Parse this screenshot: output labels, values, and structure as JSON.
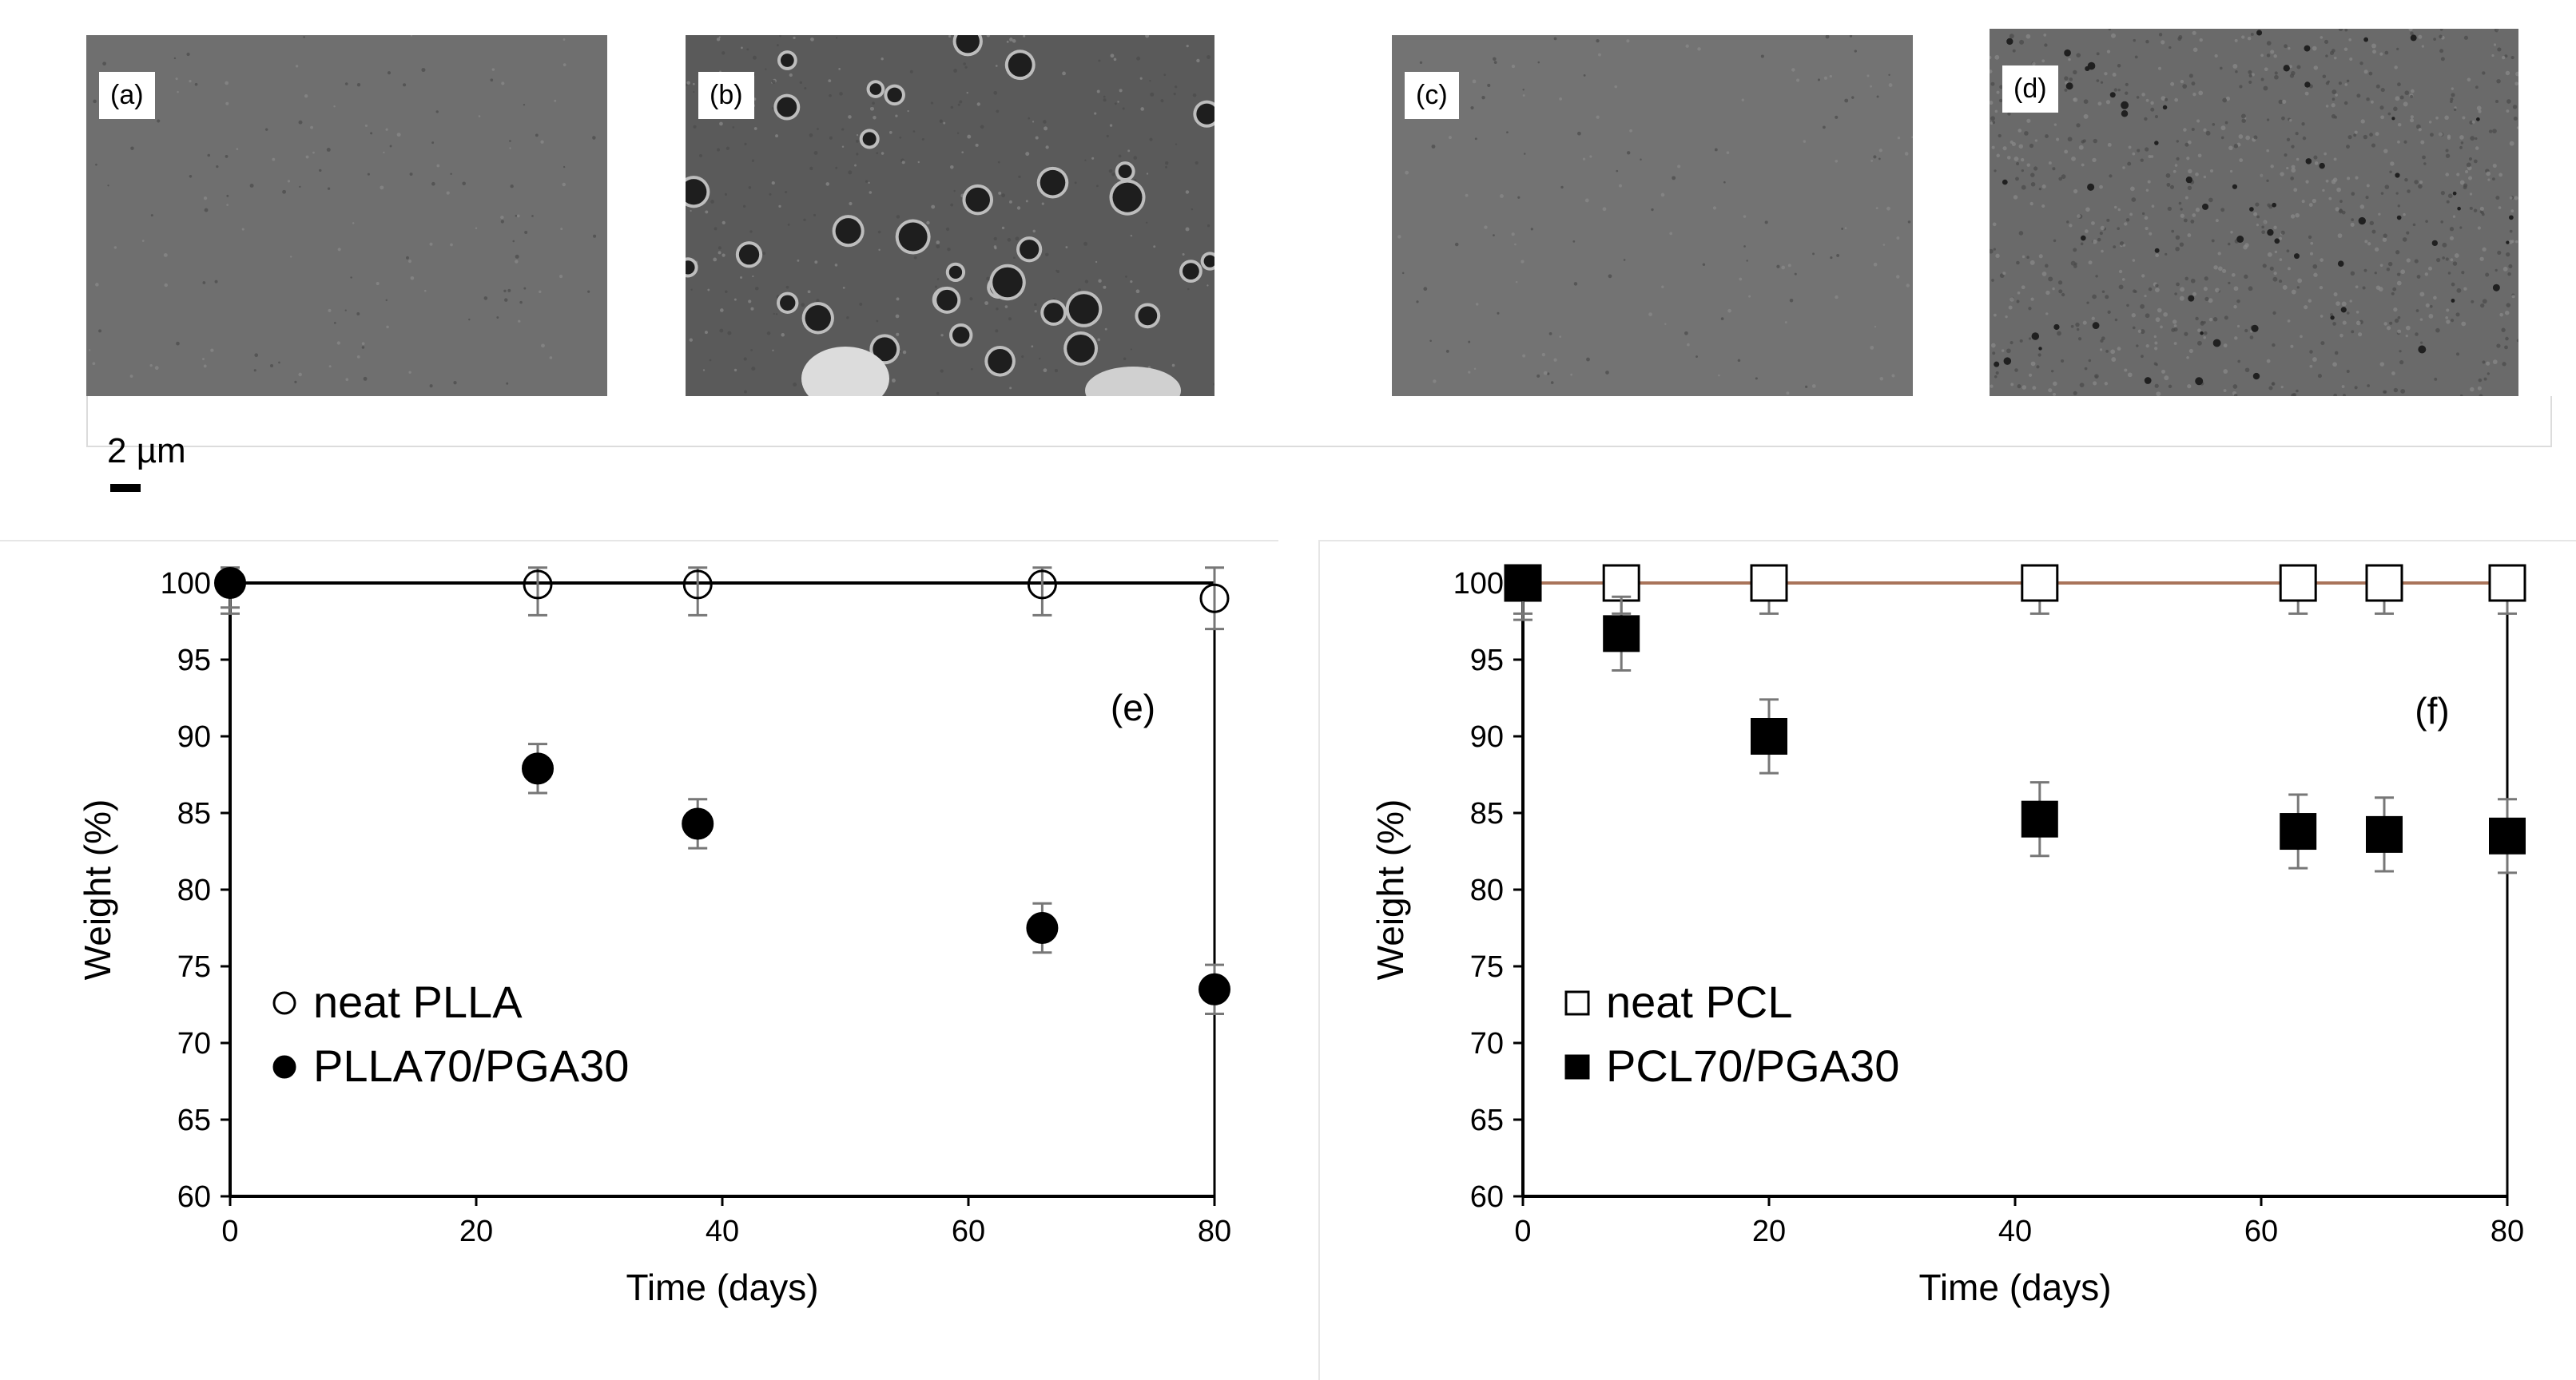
{
  "sem_panels": [
    {
      "label": "(a)",
      "texture": "smooth",
      "base": "#6f6f6f"
    },
    {
      "label": "(b)",
      "texture": "porous",
      "base": "#5a5a5a"
    },
    {
      "label": "(c)",
      "texture": "smooth",
      "base": "#737373"
    },
    {
      "label": "(d)",
      "texture": "rough",
      "base": "#6a6a6a"
    }
  ],
  "scale_bar_label": "2 µm",
  "chart_data": [
    {
      "type": "scatter",
      "panel_label": "(e)",
      "title": "",
      "xlabel": "Time (days)",
      "ylabel": "Weight (%)",
      "xlim": [
        0,
        80
      ],
      "ylim": [
        60,
        100
      ],
      "x_ticks": [
        0,
        20,
        40,
        60,
        80
      ],
      "y_ticks": [
        60,
        65,
        70,
        75,
        80,
        85,
        90,
        95,
        100
      ],
      "reference_line_color": "#000000",
      "legend_position": "bottom-left",
      "series": [
        {
          "name": "neat PLLA",
          "marker": "circle",
          "filled": false,
          "points": [
            {
              "x": 0,
              "y": 100,
              "err": 2
            },
            {
              "x": 25,
              "y": 99.9,
              "err": 2
            },
            {
              "x": 38,
              "y": 99.9,
              "err": 2
            },
            {
              "x": 66,
              "y": 99.9,
              "err": 2
            },
            {
              "x": 80,
              "y": 99.0,
              "err": 2
            }
          ]
        },
        {
          "name": "PLLA70/PGA30",
          "marker": "circle",
          "filled": true,
          "points": [
            {
              "x": 0,
              "y": 100,
              "err": 1.6
            },
            {
              "x": 25,
              "y": 87.9,
              "err": 1.6
            },
            {
              "x": 38,
              "y": 84.3,
              "err": 1.6
            },
            {
              "x": 66,
              "y": 77.5,
              "err": 1.6
            },
            {
              "x": 80,
              "y": 73.5,
              "err": 1.6
            }
          ]
        }
      ]
    },
    {
      "type": "scatter",
      "panel_label": "(f)",
      "title": "",
      "xlabel": "Time (days)",
      "ylabel": "Weight (%)",
      "xlim": [
        0,
        80
      ],
      "ylim": [
        60,
        100
      ],
      "x_ticks": [
        0,
        20,
        40,
        60,
        80
      ],
      "y_ticks": [
        60,
        65,
        70,
        75,
        80,
        85,
        90,
        95,
        100
      ],
      "reference_line_color": "#a9745a",
      "legend_position": "bottom-left",
      "series": [
        {
          "name": "neat PCL",
          "marker": "square",
          "filled": false,
          "points": [
            {
              "x": 0,
              "y": 100,
              "err": 2
            },
            {
              "x": 8,
              "y": 100,
              "err": 2
            },
            {
              "x": 20,
              "y": 100,
              "err": 2
            },
            {
              "x": 42,
              "y": 100,
              "err": 2
            },
            {
              "x": 63,
              "y": 100,
              "err": 2
            },
            {
              "x": 70,
              "y": 100,
              "err": 2
            },
            {
              "x": 80,
              "y": 100,
              "err": 2
            }
          ]
        },
        {
          "name": "PCL70/PGA30",
          "marker": "square",
          "filled": true,
          "points": [
            {
              "x": 0,
              "y": 100,
              "err": 2.4
            },
            {
              "x": 8,
              "y": 96.7,
              "err": 2.4
            },
            {
              "x": 20,
              "y": 90.0,
              "err": 2.4
            },
            {
              "x": 42,
              "y": 84.6,
              "err": 2.4
            },
            {
              "x": 63,
              "y": 83.8,
              "err": 2.4
            },
            {
              "x": 70,
              "y": 83.6,
              "err": 2.4
            },
            {
              "x": 80,
              "y": 83.5,
              "err": 2.4
            }
          ]
        }
      ]
    }
  ]
}
